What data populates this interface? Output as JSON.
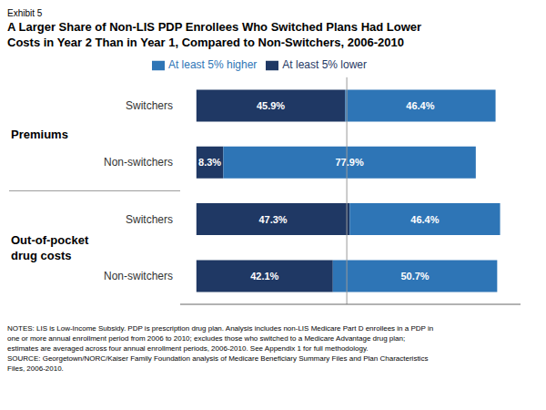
{
  "chart_data": {
    "type": "bar",
    "orientation": "horizontal",
    "stacked": true,
    "data_labels": true,
    "title": "A Larger Share of Non-LIS PDP Enrollees Who Switched Plans Had Lower\nCosts in Year 2 Than in Year 1, Compared to Non-Switchers, 2006-2010",
    "subtitle": "Exhibit 5",
    "categories": [
      "Switchers",
      "Non-switchers",
      "Switchers",
      "Non-switchers"
    ],
    "groups": [
      "Premiums",
      "Premiums",
      "Out-of-pocket\ndrug costs",
      "Out-of-pocket\ndrug costs"
    ],
    "series": [
      {
        "name": "At least 5% lower",
        "color": "#1F3864",
        "values": [
          45.9,
          8.3,
          47.3,
          42.1
        ],
        "value_labels": [
          "45.9%",
          "8.3%",
          "47.3%",
          "42.1%"
        ]
      },
      {
        "name": "At least 5% higher",
        "color": "#2E75B6",
        "values": [
          46.4,
          77.9,
          46.4,
          50.7
        ],
        "value_labels": [
          "46.4%",
          "77.9%",
          "46.4%",
          "50.7%"
        ]
      }
    ],
    "xlim": [
      -5,
      100
    ],
    "divider_x": 46.4,
    "legend": "top",
    "grid": false,
    "tick_labels": "y",
    "notes": "NOTES: LIS is Low-Income Subsidy. PDP is prescription drug plan. Analysis includes non-LIS Medicare Part D enrollees in a PDP in\none or more annual enrollment period from 2006 to 2010; excludes those who switched to a Medicare Advantage drug plan;\nestimates are averaged across four annual enrollment periods, 2006-2010. See Appendix 1 for full methodology.\nSOURCE: Georgetown/NORC/Kaiser Family Foundation analysis of Medicare Beneficiary Summary Files and Plan Characteristics\nFiles, 2006-2010."
  }
}
